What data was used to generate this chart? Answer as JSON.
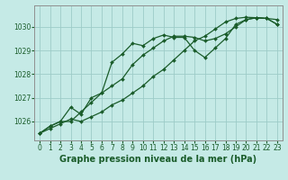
{
  "title": "Graphe pression niveau de la mer (hPa)",
  "background_color": "#c5eae6",
  "grid_color": "#9dccc8",
  "line_color": "#1a5c2a",
  "x_ticks": [
    0,
    1,
    2,
    3,
    4,
    5,
    6,
    7,
    8,
    9,
    10,
    11,
    12,
    13,
    14,
    15,
    16,
    17,
    18,
    19,
    20,
    21,
    22,
    23
  ],
  "y_ticks": [
    1026,
    1027,
    1028,
    1029,
    1030
  ],
  "ylim": [
    1025.2,
    1030.9
  ],
  "xlim": [
    -0.5,
    23.5
  ],
  "series": [
    [
      1025.5,
      1025.7,
      1025.9,
      1026.1,
      1026.0,
      1026.2,
      1026.4,
      1026.7,
      1026.9,
      1027.2,
      1027.5,
      1027.9,
      1028.2,
      1028.6,
      1029.0,
      1029.4,
      1029.6,
      1029.9,
      1030.2,
      1030.35,
      1030.4,
      1030.38,
      1030.35,
      1030.3
    ],
    [
      1025.5,
      1025.8,
      1026.0,
      1026.6,
      1026.3,
      1027.0,
      1027.2,
      1028.5,
      1028.85,
      1029.3,
      1029.2,
      1029.5,
      1029.65,
      1029.55,
      1029.55,
      1029.0,
      1028.7,
      1029.1,
      1029.5,
      1030.1,
      1030.3,
      1030.38,
      1030.35,
      1030.1
    ],
    [
      1025.5,
      1025.8,
      1026.0,
      1026.0,
      1026.4,
      1026.8,
      1027.2,
      1027.5,
      1027.8,
      1028.4,
      1028.8,
      1029.1,
      1029.4,
      1029.6,
      1029.6,
      1029.55,
      1029.4,
      1029.5,
      1029.7,
      1030.0,
      1030.3,
      1030.38,
      1030.35,
      1030.1
    ]
  ],
  "tick_fontsize": 5.5,
  "xlabel_fontsize": 7,
  "marker_size": 2.0,
  "linewidth": 0.9
}
